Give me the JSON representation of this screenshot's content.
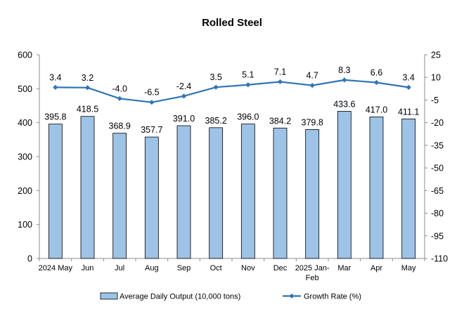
{
  "chart_data": {
    "type": "bar+line",
    "title": "Rolled Steel",
    "categories": [
      "2024 May",
      "Jun",
      "Jul",
      "Aug",
      "Sep",
      "Oct",
      "Nov",
      "Dec",
      "2025 Jan-Feb",
      "Mar",
      "Apr",
      "May"
    ],
    "category_lines": [
      [
        "2024 May"
      ],
      [
        "Jun"
      ],
      [
        "Jul"
      ],
      [
        "Aug"
      ],
      [
        "Sep"
      ],
      [
        "Oct"
      ],
      [
        "Nov"
      ],
      [
        "Dec"
      ],
      [
        "2025 Jan-",
        "Feb"
      ],
      [
        "Mar"
      ],
      [
        "Apr"
      ],
      [
        "May"
      ]
    ],
    "series": [
      {
        "name": "Average Daily Output (10,000 tons)",
        "type": "bar",
        "axis": "left",
        "color": "#9DC3E6",
        "values": [
          395.8,
          418.5,
          368.9,
          357.7,
          391.0,
          385.2,
          396.0,
          384.2,
          379.8,
          433.6,
          417.0,
          411.1
        ],
        "labels": [
          "395.8",
          "418.5",
          "368.9",
          "357.7",
          "391.0",
          "385.2",
          "396.0",
          "384.2",
          "379.8",
          "433.6",
          "417.0",
          "411.1"
        ]
      },
      {
        "name": "Growth Rate (%)",
        "type": "line",
        "axis": "right",
        "color": "#2E75B6",
        "values": [
          3.4,
          3.2,
          -4.0,
          -6.5,
          -2.4,
          3.5,
          5.1,
          7.1,
          4.7,
          8.3,
          6.6,
          3.4
        ],
        "labels": [
          "3.4",
          "3.2",
          "-4.0",
          "-6.5",
          "-2.4",
          "3.5",
          "5.1",
          "7.1",
          "4.7",
          "8.3",
          "6.6",
          "3.4"
        ]
      }
    ],
    "y_left": {
      "min": 0,
      "max": 600,
      "ticks": [
        "0",
        "100",
        "200",
        "300",
        "400",
        "500",
        "600"
      ]
    },
    "y_right": {
      "min": -110,
      "max": 25,
      "ticks": [
        "-110",
        "-95",
        "-80",
        "-65",
        "-50",
        "-35",
        "-20",
        "-5",
        "10",
        "25"
      ]
    },
    "grid": false,
    "legend_position": "bottom"
  }
}
